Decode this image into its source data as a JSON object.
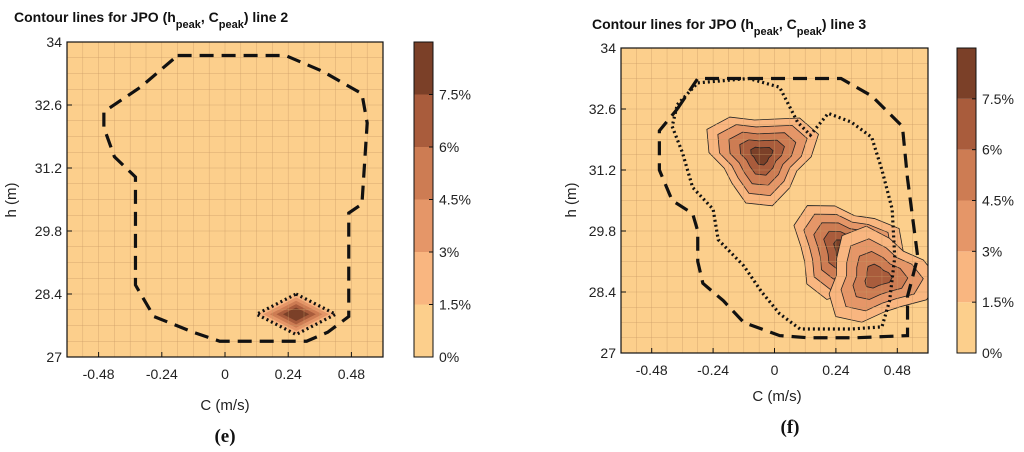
{
  "chart_data": [
    {
      "type": "heatmap",
      "panel_label": "(e)",
      "title_prefix": "Contour lines for JPO (h",
      "title_sub1": "peak",
      "title_mid": ", C",
      "title_sub2": "peak",
      "title_suffix": ") line 2",
      "xlabel": "C (m/s)",
      "ylabel": "h (m)",
      "xticks": [
        "-0.48",
        "-0.24",
        "0",
        "0.24",
        "0.48"
      ],
      "xtick_values": [
        -0.48,
        -0.24,
        0,
        0.24,
        0.48
      ],
      "yticks": [
        "27",
        "28.4",
        "29.8",
        "31.2",
        "32.6",
        "34"
      ],
      "ytick_values": [
        27,
        28.4,
        29.8,
        31.2,
        32.6,
        34
      ],
      "xlim": [
        -0.6,
        0.6
      ],
      "ylim": [
        27,
        34
      ],
      "colorbar_ticks": [
        "0%",
        "1.5%",
        "3%",
        "4.5%",
        "6%",
        "7.5%"
      ],
      "colorbar_values": [
        0,
        1.5,
        3,
        4.5,
        6,
        7.5
      ],
      "colorbar_max": 9,
      "grid": true,
      "peaks": [
        {
          "x": 0.27,
          "y": 27.95,
          "value": 9
        }
      ],
      "dashed_contour": [
        [
          -0.18,
          33.7
        ],
        [
          0.23,
          33.7
        ],
        [
          0.37,
          33.35
        ],
        [
          0.52,
          32.85
        ],
        [
          0.54,
          32.2
        ],
        [
          0.52,
          30.4
        ],
        [
          0.47,
          30.2
        ],
        [
          0.47,
          28.45
        ],
        [
          0.47,
          27.9
        ],
        [
          0.39,
          27.55
        ],
        [
          0.31,
          27.35
        ],
        [
          -0.02,
          27.35
        ],
        [
          -0.12,
          27.55
        ],
        [
          -0.27,
          27.9
        ],
        [
          -0.34,
          28.6
        ],
        [
          -0.34,
          31.0
        ],
        [
          -0.42,
          31.45
        ],
        [
          -0.46,
          32.1
        ],
        [
          -0.46,
          32.45
        ],
        [
          -0.32,
          33.0
        ],
        [
          -0.18,
          33.7
        ]
      ],
      "dotted_contour": [
        [
          0.27,
          28.4
        ],
        [
          0.42,
          27.95
        ],
        [
          0.27,
          27.5
        ],
        [
          0.12,
          27.95
        ],
        [
          0.27,
          28.4
        ]
      ]
    },
    {
      "type": "heatmap",
      "panel_label": "(f)",
      "title_prefix": "Contour lines for JPO (h",
      "title_sub1": "peak",
      "title_mid": ", C",
      "title_sub2": "peak",
      "title_suffix": ")  line 3",
      "xlabel": "C (m/s)",
      "ylabel": "h (m)",
      "xticks": [
        "-0.48",
        "-0.24",
        "0",
        "0.24",
        "0.48"
      ],
      "xtick_values": [
        -0.48,
        -0.24,
        0,
        0.24,
        0.48
      ],
      "yticks": [
        "27",
        "28.4",
        "29.8",
        "31.2",
        "32.6",
        "34"
      ],
      "ytick_values": [
        27,
        28.4,
        29.8,
        31.2,
        32.6,
        34
      ],
      "xlim": [
        -0.6,
        0.6
      ],
      "ylim": [
        27,
        34
      ],
      "colorbar_ticks": [
        "0%",
        "1.5%",
        "3%",
        "4.5%",
        "6%",
        "7.5%"
      ],
      "colorbar_values": [
        0,
        1.5,
        3,
        4.5,
        6,
        7.5
      ],
      "colorbar_max": 9,
      "grid": true,
      "peaks": [
        {
          "x": -0.05,
          "y": 31.55,
          "value": 8.5
        },
        {
          "x": 0.27,
          "y": 29.4,
          "value": 8.5
        },
        {
          "x": 0.4,
          "y": 28.75,
          "value": 6.0
        }
      ],
      "dashed_contour": [
        [
          -0.38,
          32.6
        ],
        [
          -0.3,
          33.3
        ],
        [
          0.14,
          33.3
        ],
        [
          0.26,
          33.3
        ],
        [
          0.38,
          32.9
        ],
        [
          0.5,
          32.2
        ],
        [
          0.52,
          31.0
        ],
        [
          0.54,
          30.1
        ],
        [
          0.56,
          29.2
        ],
        [
          0.52,
          28.3
        ],
        [
          0.52,
          27.4
        ],
        [
          0.32,
          27.35
        ],
        [
          0.13,
          27.35
        ],
        [
          0.02,
          27.4
        ],
        [
          -0.12,
          27.7
        ],
        [
          -0.2,
          28.2
        ],
        [
          -0.28,
          28.6
        ],
        [
          -0.3,
          29.1
        ],
        [
          -0.3,
          29.8
        ],
        [
          -0.32,
          30.2
        ],
        [
          -0.4,
          30.5
        ],
        [
          -0.45,
          31.2
        ],
        [
          -0.45,
          32.1
        ],
        [
          -0.38,
          32.6
        ]
      ],
      "dotted_contour": [
        [
          -0.38,
          32.7
        ],
        [
          -0.3,
          33.2
        ],
        [
          -0.1,
          33.3
        ],
        [
          0.02,
          33.1
        ],
        [
          0.09,
          32.3
        ],
        [
          0.14,
          32.0
        ],
        [
          0.21,
          32.5
        ],
        [
          0.3,
          32.3
        ],
        [
          0.38,
          31.95
        ],
        [
          0.42,
          31.2
        ],
        [
          0.46,
          30.3
        ],
        [
          0.47,
          29.2
        ],
        [
          0.45,
          28.2
        ],
        [
          0.42,
          27.6
        ],
        [
          0.3,
          27.55
        ],
        [
          0.1,
          27.55
        ],
        [
          0.02,
          27.9
        ],
        [
          -0.05,
          28.4
        ],
        [
          -0.12,
          29.0
        ],
        [
          -0.22,
          29.6
        ],
        [
          -0.24,
          30.3
        ],
        [
          -0.32,
          30.8
        ],
        [
          -0.36,
          31.6
        ],
        [
          -0.4,
          32.2
        ],
        [
          -0.38,
          32.7
        ]
      ]
    }
  ]
}
